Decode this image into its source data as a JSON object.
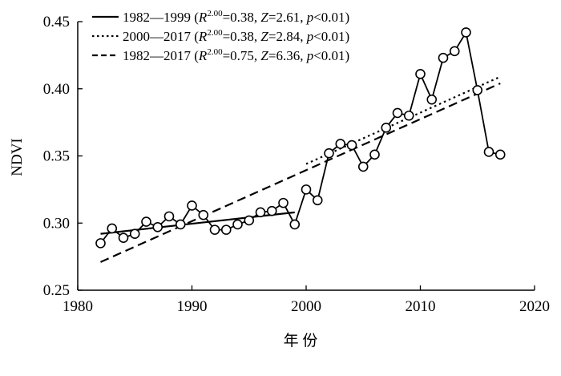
{
  "chart_data": {
    "type": "line",
    "title": "",
    "xlabel": "年 份",
    "ylabel": "NDVI",
    "xlim": [
      1980,
      2020
    ],
    "ylim": [
      0.25,
      0.45
    ],
    "xticks": [
      "1980",
      "1990",
      "2000",
      "2010",
      "2020"
    ],
    "yticks": [
      "0.25",
      "0.30",
      "0.35",
      "0.40",
      "0.45"
    ],
    "grid": false,
    "legend_position": "top-left",
    "series": [
      {
        "kind": "observed",
        "style": "solid-with-circle-markers",
        "x": [
          1982,
          1983,
          1984,
          1985,
          1986,
          1987,
          1988,
          1989,
          1990,
          1991,
          1992,
          1993,
          1994,
          1995,
          1996,
          1997,
          1998,
          1999,
          2000,
          2001,
          2002,
          2003,
          2004,
          2005,
          2006,
          2007,
          2008,
          2009,
          2010,
          2011,
          2012,
          2013,
          2014,
          2015,
          2016,
          2017
        ],
        "y": [
          0.285,
          0.296,
          0.289,
          0.292,
          0.301,
          0.297,
          0.305,
          0.299,
          0.313,
          0.306,
          0.295,
          0.295,
          0.299,
          0.302,
          0.308,
          0.309,
          0.315,
          0.299,
          0.325,
          0.317,
          0.352,
          0.359,
          0.358,
          0.342,
          0.351,
          0.371,
          0.382,
          0.38,
          0.411,
          0.392,
          0.423,
          0.428,
          0.442,
          0.399,
          0.353,
          0.351
        ]
      },
      {
        "name": "1982—1999",
        "style": "solid",
        "x": [
          1982,
          1999
        ],
        "y": [
          0.292,
          0.308
        ],
        "legend": {
          "prefix": "1982—1999 (",
          "r2": "=0.38, ",
          "z": "=2.61, ",
          "p": "<0.01)"
        }
      },
      {
        "name": "2000—2017",
        "style": "dotted",
        "x": [
          2000,
          2017
        ],
        "y": [
          0.344,
          0.409
        ],
        "legend": {
          "prefix": "2000—2017 (",
          "r2": "=0.38, ",
          "z": "=2.84, ",
          "p": "<0.01)"
        }
      },
      {
        "name": "1982—2017",
        "style": "dashed",
        "x": [
          1982,
          2017
        ],
        "y": [
          0.271,
          0.404
        ],
        "legend": {
          "prefix": "1982—2017 (",
          "r2": "=0.75, ",
          "z": "=6.36, ",
          "p": "<0.01)"
        }
      }
    ],
    "legend_symbols": {
      "r": "R",
      "r_sup": "2.00",
      "z": "Z",
      "p": "p"
    }
  }
}
